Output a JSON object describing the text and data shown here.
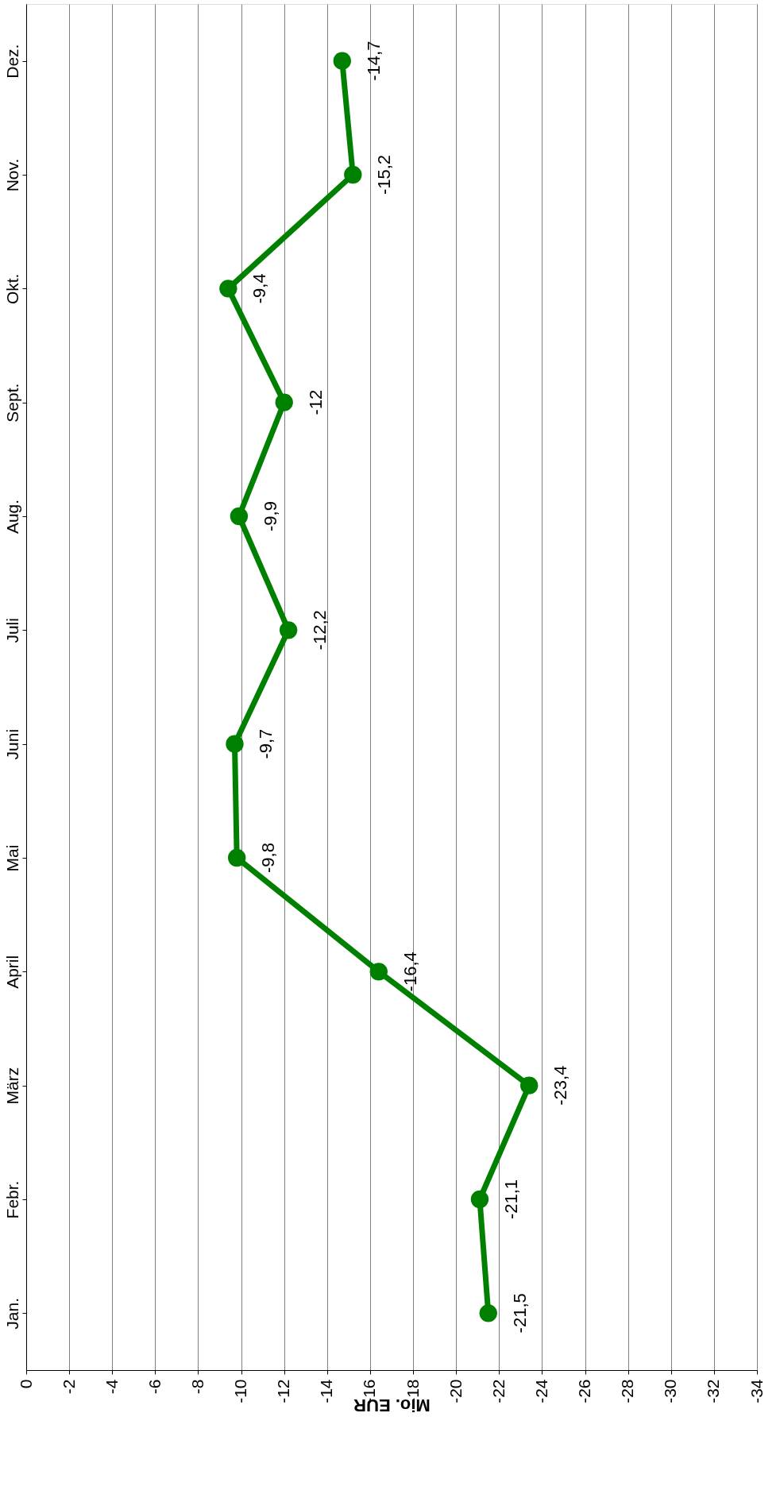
{
  "chart_data": {
    "type": "line",
    "orientation": "horizontal",
    "xlabel": "Mio. EUR",
    "categories": [
      "Dez.",
      "Nov.",
      "Okt.",
      "Sept.",
      "Aug.",
      "Juli",
      "Juni",
      "Mai",
      "April",
      "März",
      "Febr.",
      "Jan."
    ],
    "series": [
      {
        "color": "#008000",
        "values": [
          -14.7,
          -15.2,
          -9.4,
          -12,
          -9.9,
          -12.2,
          -9.7,
          -9.8,
          -16.4,
          -23.4,
          -21.1,
          -21.5
        ],
        "value_labels": [
          "-14,7",
          "-15,2",
          "-9,4",
          "-12",
          "-9,9",
          "-12,2",
          "-9,7",
          "-9,8",
          "-16,4",
          "-23,4",
          "-21,1",
          "-21,5"
        ]
      }
    ],
    "xlim": [
      0,
      -34
    ],
    "xticks": [
      0,
      -2,
      -4,
      -6,
      -8,
      -10,
      -12,
      -14,
      -16,
      -18,
      -20,
      -22,
      -24,
      -26,
      -28,
      -30,
      -32,
      -34
    ],
    "grid": "x",
    "marker": "circle",
    "line_style": "solid"
  }
}
